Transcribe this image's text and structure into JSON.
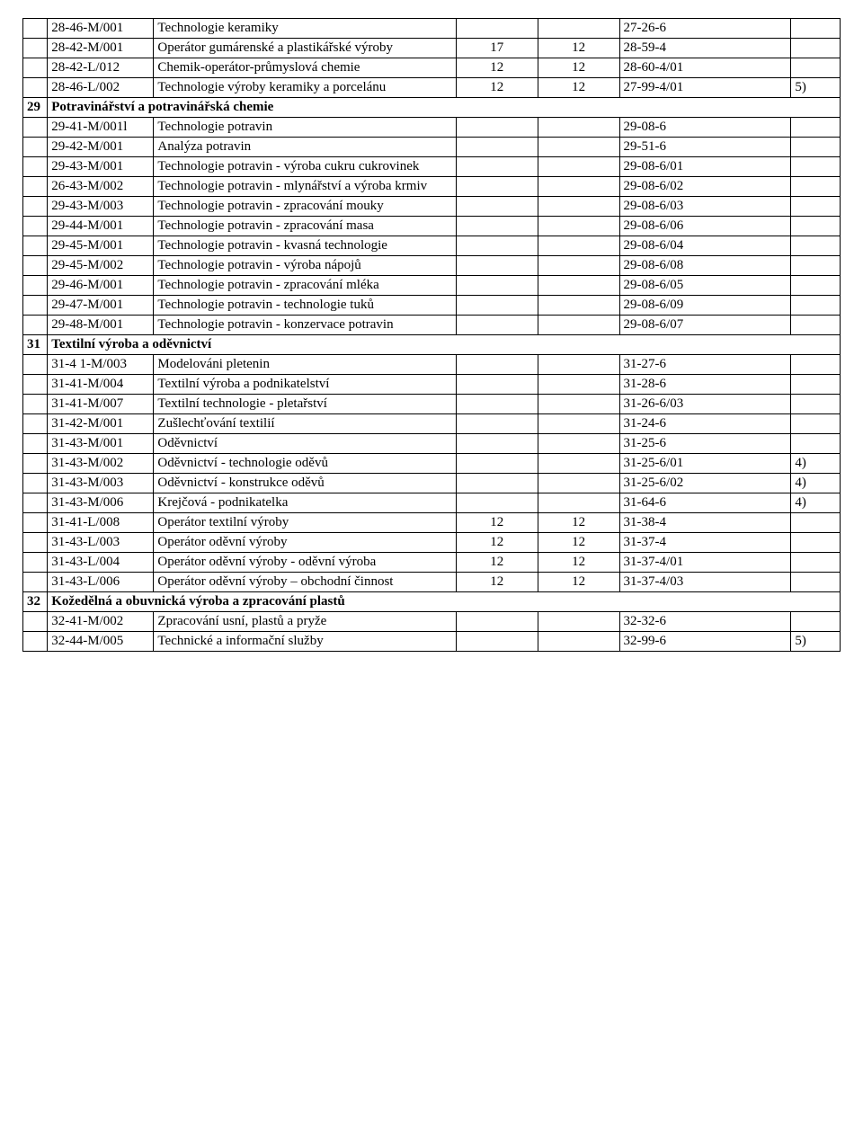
{
  "columns_widths_pct": [
    3,
    13,
    37,
    10,
    10,
    21,
    6
  ],
  "font": {
    "family": "Times New Roman",
    "size_pt": 12,
    "color": "#000000"
  },
  "background_color": "#ffffff",
  "border_color": "#000000",
  "rows": [
    {
      "c0": "",
      "c1": "28-46-M/001",
      "c2": "Technologie keramiky",
      "c3": "",
      "c4": "",
      "c5": "27-26-6",
      "c6": ""
    },
    {
      "c0": "",
      "c1": "28-42-M/001",
      "c2": "Operátor gumárenské a plastikářské výroby",
      "c3": "17",
      "c4": "12",
      "c5": "28-59-4",
      "c6": ""
    },
    {
      "c0": "",
      "c1": "28-42-L/012",
      "c2": "Chemik-operátor-průmyslová chemie",
      "c3": "12",
      "c4": "12",
      "c5": "28-60-4/01",
      "c6": ""
    },
    {
      "c0": "",
      "c1": "28-46-L/002",
      "c2": "Technologie výroby keramiky a porcelánu",
      "c3": "12",
      "c4": "12",
      "c5": "27-99-4/01",
      "c6": "5)"
    },
    {
      "section": true,
      "c0": "29",
      "rest": "Potravinářství a potravinářská chemie"
    },
    {
      "c0": "",
      "c1": "29-41-M/001l",
      "c2": "Technologie potravin",
      "c3": "",
      "c4": "",
      "c5": "29-08-6",
      "c6": ""
    },
    {
      "c0": "",
      "c1": "29-42-M/001",
      "c2": "Analýza potravin",
      "c3": "",
      "c4": "",
      "c5": "29-51-6",
      "c6": ""
    },
    {
      "c0": "",
      "c1": "29-43-M/001",
      "c2": "Technologie potravin - výroba cukru cukrovinek",
      "c3": "",
      "c4": "",
      "c5": "29-08-6/01",
      "c6": ""
    },
    {
      "c0": "",
      "c1": "26-43-M/002",
      "c2": "Technologie potravin - mlynářství a výroba krmiv",
      "c3": "",
      "c4": "",
      "c5": "29-08-6/02",
      "c6": ""
    },
    {
      "c0": "",
      "c1": "29-43-M/003",
      "c2": "Technologie potravin - zpracování mouky",
      "c3": "",
      "c4": "",
      "c5": "29-08-6/03",
      "c6": ""
    },
    {
      "c0": "",
      "c1": "29-44-M/001",
      "c2": "Technologie potravin - zpracování masa",
      "c3": "",
      "c4": "",
      "c5": "29-08-6/06",
      "c6": ""
    },
    {
      "c0": "",
      "c1": "29-45-M/001",
      "c2": "Technologie potravin - kvasná technologie",
      "c3": "",
      "c4": "",
      "c5": "29-08-6/04",
      "c6": ""
    },
    {
      "c0": "",
      "c1": "29-45-M/002",
      "c2": "Technologie potravin - výroba nápojů",
      "c3": "",
      "c4": "",
      "c5": "29-08-6/08",
      "c6": ""
    },
    {
      "c0": "",
      "c1": "29-46-M/001",
      "c2": "Technologie potravin - zpracování mléka",
      "c3": "",
      "c4": "",
      "c5": "29-08-6/05",
      "c6": ""
    },
    {
      "c0": "",
      "c1": "29-47-M/001",
      "c2": "Technologie potravin - technologie tuků",
      "c3": "",
      "c4": "",
      "c5": "29-08-6/09",
      "c6": ""
    },
    {
      "c0": "",
      "c1": "29-48-M/001",
      "c2": "Technologie potravin - konzervace potravin",
      "c3": "",
      "c4": "",
      "c5": "29-08-6/07",
      "c6": ""
    },
    {
      "section": true,
      "c0": "31",
      "rest": "Textilní výroba a oděvnictví"
    },
    {
      "c0": "",
      "c1": "31-4 1-M/003",
      "c2": "Modelováni pletenin",
      "c3": "",
      "c4": "",
      "c5": "31-27-6",
      "c6": ""
    },
    {
      "c0": "",
      "c1": "31-41-M/004",
      "c2": "Textilní výroba a podnikatelství",
      "c3": "",
      "c4": "",
      "c5": "31-28-6",
      "c6": ""
    },
    {
      "c0": "",
      "c1": "31-41-M/007",
      "c2": "Textilní technologie - pletařství",
      "c3": "",
      "c4": "",
      "c5": "31-26-6/03",
      "c6": ""
    },
    {
      "c0": "",
      "c1": "31-42-M/001",
      "c2": "Zušlechťování textilií",
      "c3": "",
      "c4": "",
      "c5": "31-24-6",
      "c6": ""
    },
    {
      "c0": "",
      "c1": "31-43-M/001",
      "c2": "Oděvnictví",
      "c3": "",
      "c4": "",
      "c5": "31-25-6",
      "c6": ""
    },
    {
      "c0": "",
      "c1": "31-43-M/002",
      "c2": "Oděvnictví - technologie oděvů",
      "c3": "",
      "c4": "",
      "c5": "31-25-6/01",
      "c6": "4)"
    },
    {
      "c0": "",
      "c1": "31-43-M/003",
      "c2": "Oděvnictví - konstrukce oděvů",
      "c3": "",
      "c4": "",
      "c5": "31-25-6/02",
      "c6": "4)"
    },
    {
      "c0": "",
      "c1": "31-43-M/006",
      "c2": "Krejčová - podnikatelka",
      "c3": "",
      "c4": "",
      "c5": "31-64-6",
      "c6": "4)"
    },
    {
      "c0": "",
      "c1": "31-41-L/008",
      "c2": "Operátor textilní výroby",
      "c3": "12",
      "c4": "12",
      "c5": "31-38-4",
      "c6": ""
    },
    {
      "c0": "",
      "c1": "31-43-L/003",
      "c2": "Operátor oděvní výroby",
      "c3": "12",
      "c4": "12",
      "c5": "31-37-4",
      "c6": ""
    },
    {
      "c0": "",
      "c1": "31-43-L/004",
      "c2": "Operátor oděvní výroby - oděvní výroba",
      "c3": "12",
      "c4": "12",
      "c5": "31-37-4/01",
      "c6": ""
    },
    {
      "c0": "",
      "c1": "31-43-L/006",
      "c2": "Operátor oděvní výroby – obchodní činnost",
      "c3": "12",
      "c4": "12",
      "c5": "31-37-4/03",
      "c6": ""
    },
    {
      "section": true,
      "c0": "32",
      "rest": "Kožedělná a obuvnická výroba a zpracování plastů"
    },
    {
      "c0": "",
      "c1": "32-41-M/002",
      "c2": "Zpracování usní, plastů a pryže",
      "c3": "",
      "c4": "",
      "c5": "32-32-6",
      "c6": ""
    },
    {
      "c0": "",
      "c1": "32-44-M/005",
      "c2": "Technické a informační služby",
      "c3": "",
      "c4": "",
      "c5": "32-99-6",
      "c6": "5)"
    }
  ]
}
